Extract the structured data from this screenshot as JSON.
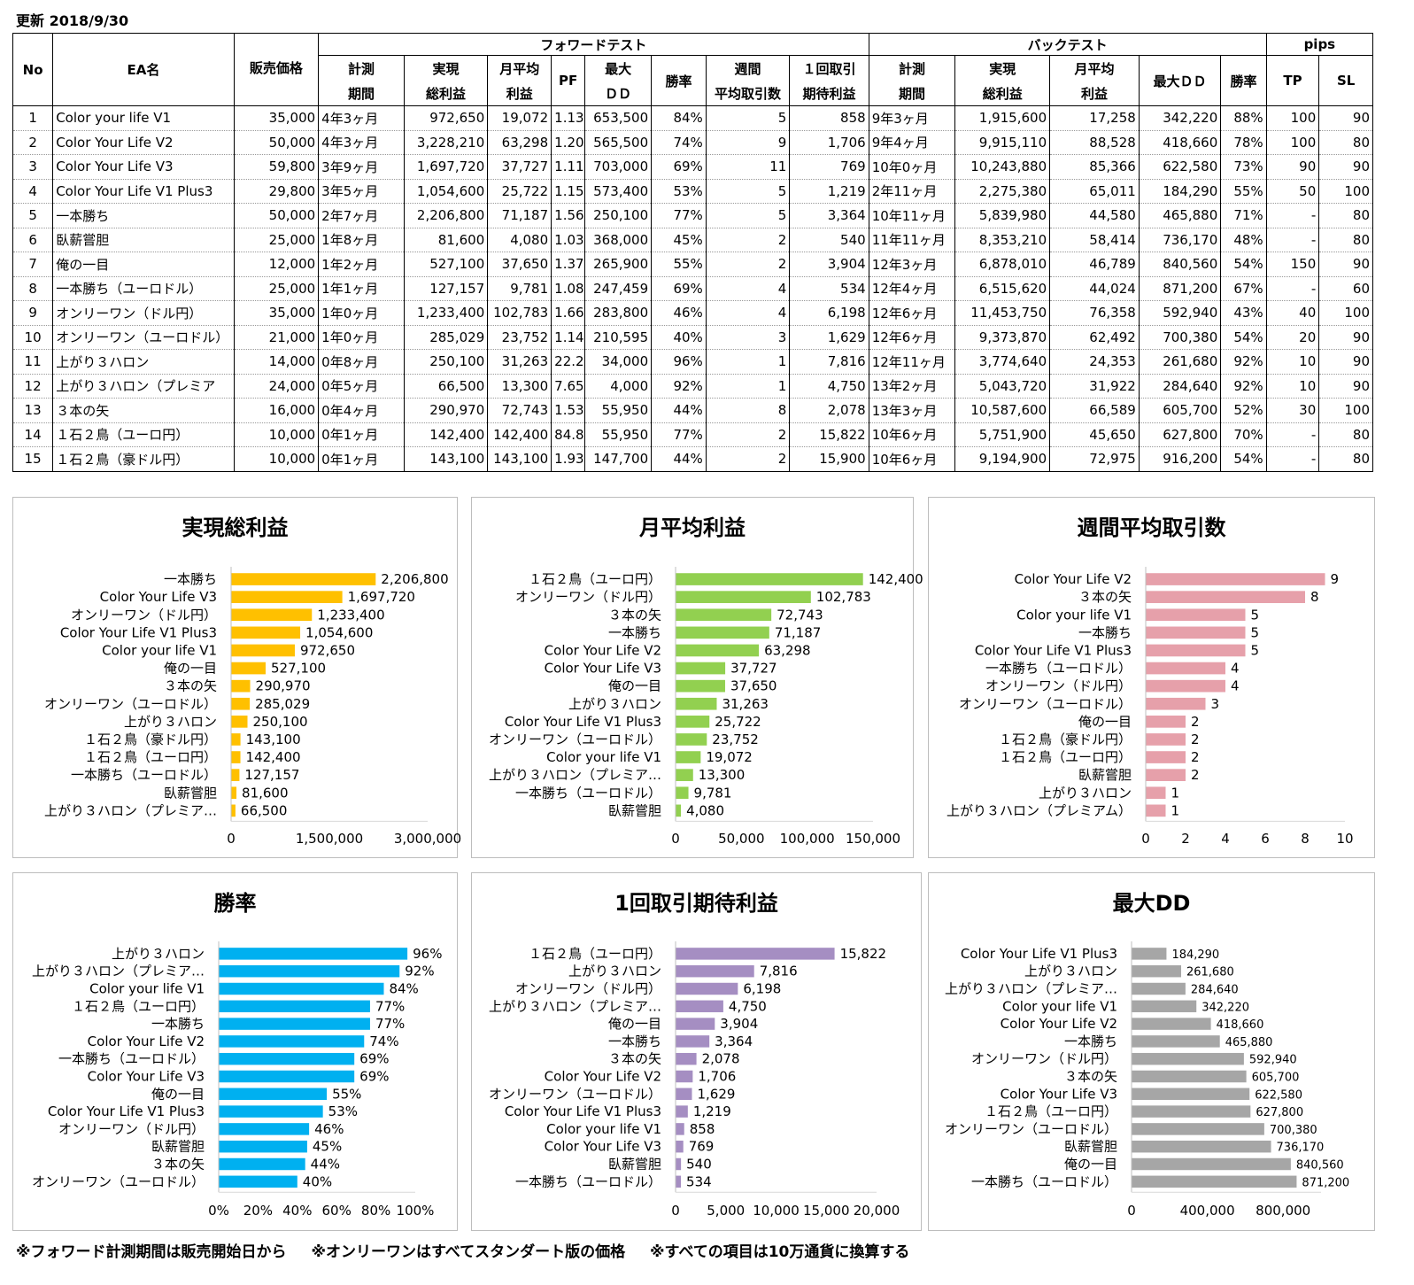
{
  "updated_label": "更新 2018/9/30",
  "table": {
    "header_top": {
      "no": "No",
      "ea": "EA名",
      "price": "販売価格",
      "forward": "フォワードテスト",
      "back": "バックテスト",
      "pips": "pips"
    },
    "forward_cols": [
      [
        "計測",
        "期間"
      ],
      [
        "実現",
        "総利益"
      ],
      [
        "月平均",
        "利益"
      ],
      [
        "PF",
        ""
      ],
      [
        "最大",
        "ＤＤ"
      ],
      [
        "勝率",
        ""
      ],
      [
        "週間",
        "平均取引数"
      ],
      [
        "１回取引",
        "期待利益"
      ]
    ],
    "back_cols": [
      [
        "計測",
        "期間"
      ],
      [
        "実現",
        "総利益"
      ],
      [
        "月平均",
        "利益"
      ],
      [
        "最大ＤＤ",
        ""
      ],
      [
        "勝率",
        ""
      ]
    ],
    "pips_cols": [
      "TP",
      "SL"
    ],
    "rows": [
      [
        "1",
        "Color your life V1",
        "35,000",
        "4年3ヶ月",
        "972,650",
        "19,072",
        "1.13",
        "653,500",
        "84%",
        "5",
        "858",
        "9年3ヶ月",
        "1,915,600",
        "17,258",
        "342,220",
        "88%",
        "100",
        "90"
      ],
      [
        "2",
        "Color Your Life V2",
        "50,000",
        "4年3ヶ月",
        "3,228,210",
        "63,298",
        "1.20",
        "565,500",
        "74%",
        "9",
        "1,706",
        "9年4ヶ月",
        "9,915,110",
        "88,528",
        "418,660",
        "78%",
        "100",
        "80"
      ],
      [
        "3",
        "Color Your Life V3",
        "59,800",
        "3年9ヶ月",
        "1,697,720",
        "37,727",
        "1.11",
        "703,000",
        "69%",
        "11",
        "769",
        "10年0ヶ月",
        "10,243,880",
        "85,366",
        "622,580",
        "73%",
        "90",
        "90"
      ],
      [
        "4",
        "Color Your Life V1 Plus3",
        "29,800",
        "3年5ヶ月",
        "1,054,600",
        "25,722",
        "1.15",
        "573,400",
        "53%",
        "5",
        "1,219",
        "2年11ヶ月",
        "2,275,380",
        "65,011",
        "184,290",
        "55%",
        "50",
        "100"
      ],
      [
        "5",
        "一本勝ち",
        "50,000",
        "2年7ヶ月",
        "2,206,800",
        "71,187",
        "1.56",
        "250,100",
        "77%",
        "5",
        "3,364",
        "10年11ヶ月",
        "5,839,980",
        "44,580",
        "465,880",
        "71%",
        "-",
        "80"
      ],
      [
        "6",
        "臥薪嘗胆",
        "25,000",
        "1年8ヶ月",
        "81,600",
        "4,080",
        "1.03",
        "368,000",
        "45%",
        "2",
        "540",
        "11年11ヶ月",
        "8,353,210",
        "58,414",
        "736,170",
        "48%",
        "-",
        "80"
      ],
      [
        "7",
        "俺の一目",
        "12,000",
        "1年2ヶ月",
        "527,100",
        "37,650",
        "1.37",
        "265,900",
        "55%",
        "2",
        "3,904",
        "12年3ヶ月",
        "6,878,010",
        "46,789",
        "840,560",
        "54%",
        "150",
        "90"
      ],
      [
        "8",
        "一本勝ち（ユーロドル）",
        "25,000",
        "1年1ヶ月",
        "127,157",
        "9,781",
        "1.08",
        "247,459",
        "69%",
        "4",
        "534",
        "12年4ヶ月",
        "6,515,620",
        "44,024",
        "871,200",
        "67%",
        "-",
        "60"
      ],
      [
        "9",
        "オンリーワン（ドル円）",
        "35,000",
        "1年0ヶ月",
        "1,233,400",
        "102,783",
        "1.66",
        "283,800",
        "46%",
        "4",
        "6,198",
        "12年6ヶ月",
        "11,453,750",
        "76,358",
        "592,940",
        "43%",
        "40",
        "100"
      ],
      [
        "10",
        "オンリーワン（ユーロドル）",
        "21,000",
        "1年0ヶ月",
        "285,029",
        "23,752",
        "1.14",
        "210,595",
        "40%",
        "3",
        "1,629",
        "12年6ヶ月",
        "9,373,870",
        "62,492",
        "700,380",
        "54%",
        "20",
        "90"
      ],
      [
        "11",
        "上がり３ハロン",
        "14,000",
        "0年8ヶ月",
        "250,100",
        "31,263",
        "22.2",
        "34,000",
        "96%",
        "1",
        "7,816",
        "12年11ヶ月",
        "3,774,640",
        "24,353",
        "261,680",
        "92%",
        "10",
        "90"
      ],
      [
        "12",
        "上がり３ハロン（プレミア",
        "24,000",
        "0年5ヶ月",
        "66,500",
        "13,300",
        "7.65",
        "4,000",
        "92%",
        "1",
        "4,750",
        "13年2ヶ月",
        "5,043,720",
        "31,922",
        "284,640",
        "92%",
        "10",
        "90"
      ],
      [
        "13",
        "３本の矢",
        "16,000",
        "0年4ヶ月",
        "290,970",
        "72,743",
        "1.53",
        "55,950",
        "44%",
        "8",
        "2,078",
        "13年3ヶ月",
        "10,587,600",
        "66,589",
        "605,700",
        "52%",
        "30",
        "100"
      ],
      [
        "14",
        "１石２鳥（ユーロ円）",
        "10,000",
        "0年1ヶ月",
        "142,400",
        "142,400",
        "84.8",
        "55,950",
        "77%",
        "2",
        "15,822",
        "10年6ヶ月",
        "5,751,900",
        "45,650",
        "627,800",
        "70%",
        "-",
        "80"
      ],
      [
        "15",
        "１石２鳥（豪ドル円）",
        "10,000",
        "0年1ヶ月",
        "143,100",
        "143,100",
        "1.93",
        "147,700",
        "44%",
        "2",
        "15,900",
        "10年6ヶ月",
        "9,194,900",
        "72,975",
        "916,200",
        "54%",
        "-",
        "80"
      ]
    ]
  },
  "chart_data": [
    {
      "type": "bar",
      "title": "実現総利益",
      "color": "#FFC000",
      "categories": [
        "一本勝ち",
        "Color Your Life V3",
        "オンリーワン（ドル円）",
        "Color Your Life V1 Plus3",
        "Color your life V1",
        "俺の一目",
        "３本の矢",
        "オンリーワン（ユーロドル）",
        "上がり３ハロン",
        "１石２鳥（豪ドル円）",
        "１石２鳥（ユーロ円）",
        "一本勝ち（ユーロドル）",
        "臥薪嘗胆",
        "上がり３ハロン（プレミア…"
      ],
      "values": [
        2206800,
        1697720,
        1233400,
        1054600,
        972650,
        527100,
        290970,
        285029,
        250100,
        143100,
        142400,
        127157,
        81600,
        66500
      ],
      "labels": [
        "2,206,800",
        "1,697,720",
        "1,233,400",
        "1,054,600",
        "972,650",
        "527,100",
        "290,970",
        "285,029",
        "250,100",
        "143,100",
        "142,400",
        "127,157",
        "81,600",
        "66,500"
      ],
      "xlim": [
        0,
        3000000
      ],
      "ticks": [
        "0",
        "1,500,000",
        "3,000,000"
      ]
    },
    {
      "type": "bar",
      "title": "月平均利益",
      "color": "#92D050",
      "categories": [
        "１石２鳥（ユーロ円）",
        "オンリーワン（ドル円）",
        "３本の矢",
        "一本勝ち",
        "Color Your Life V2",
        "Color Your Life V3",
        "俺の一目",
        "上がり３ハロン",
        "Color Your Life V1 Plus3",
        "オンリーワン（ユーロドル）",
        "Color your life V1",
        "上がり３ハロン（プレミア…",
        "一本勝ち（ユーロドル）",
        "臥薪嘗胆"
      ],
      "values": [
        142400,
        102783,
        72743,
        71187,
        63298,
        37727,
        37650,
        31263,
        25722,
        23752,
        19072,
        13300,
        9781,
        4080
      ],
      "labels": [
        "142,400",
        "102,783",
        "72,743",
        "71,187",
        "63,298",
        "37,727",
        "37,650",
        "31,263",
        "25,722",
        "23,752",
        "19,072",
        "13,300",
        "9,781",
        "4,080"
      ],
      "xlim": [
        0,
        150000
      ],
      "ticks": [
        "0",
        "50,000",
        "100,000",
        "150,000"
      ]
    },
    {
      "type": "bar",
      "title": "週間平均取引数",
      "color": "#E6A0AA",
      "categories": [
        "Color Your Life V2",
        "３本の矢",
        "Color your life V1",
        "一本勝ち",
        "Color Your Life V1 Plus3",
        "一本勝ち（ユーロドル）",
        "オンリーワン（ドル円）",
        "オンリーワン（ユーロドル）",
        "俺の一目",
        "１石２鳥（豪ドル円）",
        "１石２鳥（ユーロ円）",
        "臥薪嘗胆",
        "上がり３ハロン",
        "上がり３ハロン（プレミアム）"
      ],
      "values": [
        9,
        8,
        5,
        5,
        5,
        4,
        4,
        3,
        2,
        2,
        2,
        2,
        1,
        1
      ],
      "labels": [
        "9",
        "8",
        "5",
        "5",
        "5",
        "4",
        "4",
        "3",
        "2",
        "2",
        "2",
        "2",
        "1",
        "1"
      ],
      "xlim": [
        0,
        10
      ],
      "ticks": [
        "0",
        "2",
        "4",
        "6",
        "8",
        "10"
      ]
    },
    {
      "type": "bar",
      "title": "勝率",
      "color": "#00B0F0",
      "categories": [
        "上がり３ハロン",
        "上がり３ハロン（プレミア…",
        "Color your life V1",
        "１石２鳥（ユーロ円）",
        "一本勝ち",
        "Color Your Life V2",
        "一本勝ち（ユーロドル）",
        "Color Your Life V3",
        "俺の一目",
        "Color Your Life V1 Plus3",
        "オンリーワン（ドル円）",
        "臥薪嘗胆",
        "３本の矢",
        "オンリーワン（ユーロドル）"
      ],
      "values": [
        96,
        92,
        84,
        77,
        77,
        74,
        69,
        69,
        55,
        53,
        46,
        45,
        44,
        40
      ],
      "labels": [
        "96%",
        "92%",
        "84%",
        "77%",
        "77%",
        "74%",
        "69%",
        "69%",
        "55%",
        "53%",
        "46%",
        "45%",
        "44%",
        "40%"
      ],
      "xlim": [
        0,
        100
      ],
      "ticks": [
        "0%",
        "20%",
        "40%",
        "60%",
        "80%",
        "100%"
      ]
    },
    {
      "type": "bar",
      "title": "1回取引期待利益",
      "color": "#A58EC2",
      "categories": [
        "１石２鳥（ユーロ円）",
        "上がり３ハロン",
        "オンリーワン（ドル円）",
        "上がり３ハロン（プレミア…",
        "俺の一目",
        "一本勝ち",
        "３本の矢",
        "Color Your Life V2",
        "オンリーワン（ユーロドル）",
        "Color Your Life V1 Plus3",
        "Color your life V1",
        "Color Your Life V3",
        "臥薪嘗胆",
        "一本勝ち（ユーロドル）"
      ],
      "values": [
        15822,
        7816,
        6198,
        4750,
        3904,
        3364,
        2078,
        1706,
        1629,
        1219,
        858,
        769,
        540,
        534
      ],
      "labels": [
        "15,822",
        "7,816",
        "6,198",
        "4,750",
        "3,904",
        "3,364",
        "2,078",
        "1,706",
        "1,629",
        "1,219",
        "858",
        "769",
        "540",
        "534"
      ],
      "xlim": [
        0,
        20000
      ],
      "ticks": [
        "0",
        "5,000",
        "10,000",
        "15,000",
        "20,000"
      ]
    },
    {
      "type": "bar",
      "title": "最大DD",
      "color": "#A6A6A6",
      "categories": [
        "Color Your Life V1 Plus3",
        "上がり３ハロン",
        "上がり３ハロン（プレミア…",
        "Color your life V1",
        "Color Your Life V2",
        "一本勝ち",
        "オンリーワン（ドル円）",
        "３本の矢",
        "Color Your Life V3",
        "１石２鳥（ユーロ円）",
        "オンリーワン（ユーロドル）",
        "臥薪嘗胆",
        "俺の一目",
        "一本勝ち（ユーロドル）"
      ],
      "values": [
        184290,
        261680,
        284640,
        342220,
        418660,
        465880,
        592940,
        605700,
        622580,
        627800,
        700380,
        736170,
        840560,
        871200
      ],
      "labels": [
        "184,290",
        "261,680",
        "284,640",
        "342,220",
        "418,660",
        "465,880",
        "592,940",
        "605,700",
        "622,580",
        "627,800",
        "700,380",
        "736,170",
        "840,560",
        "871,200"
      ],
      "xlim": [
        0,
        1000000
      ],
      "ticks": [
        "0",
        "400,000",
        "800,000"
      ],
      "tick_values": [
        0,
        400000,
        800000
      ]
    }
  ],
  "footnotes": [
    "※フォワード計測期間は販売開始日から",
    "※オンリーワンはすべてスタンダート版の価格",
    "※すべての項目は10万通貨に換算する"
  ]
}
